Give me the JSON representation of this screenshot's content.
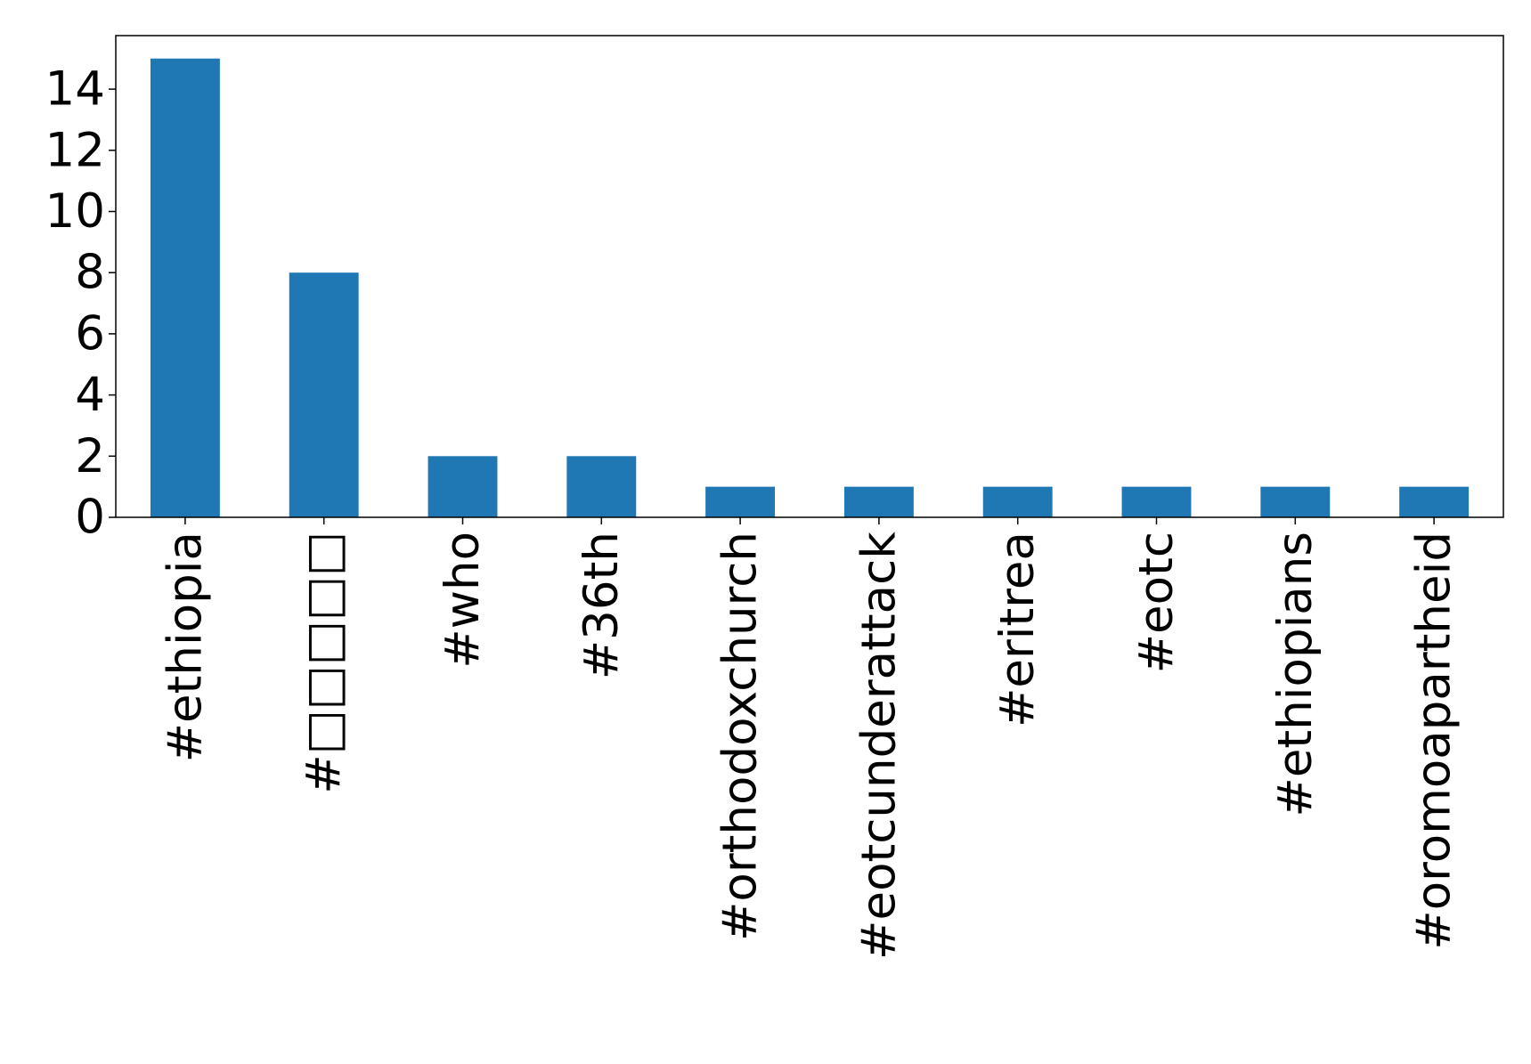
{
  "chart_data": {
    "type": "bar",
    "categories": [
      "#ethiopia",
      "#□□□□□",
      "#who",
      "#36th",
      "#orthodoxchurch",
      "#eotcunderattack",
      "#eritrea",
      "#eotc",
      "#ethiopians",
      "#oromoapartheid"
    ],
    "values": [
      15,
      8,
      2,
      2,
      1,
      1,
      1,
      1,
      1,
      1
    ],
    "yticks": [
      0,
      2,
      4,
      6,
      8,
      10,
      12,
      14
    ],
    "ylim": [
      0,
      15.75
    ],
    "title": "",
    "xlabel": "",
    "ylabel": "",
    "bar_color": "#1f77b4",
    "grid": false,
    "legend": "none"
  }
}
